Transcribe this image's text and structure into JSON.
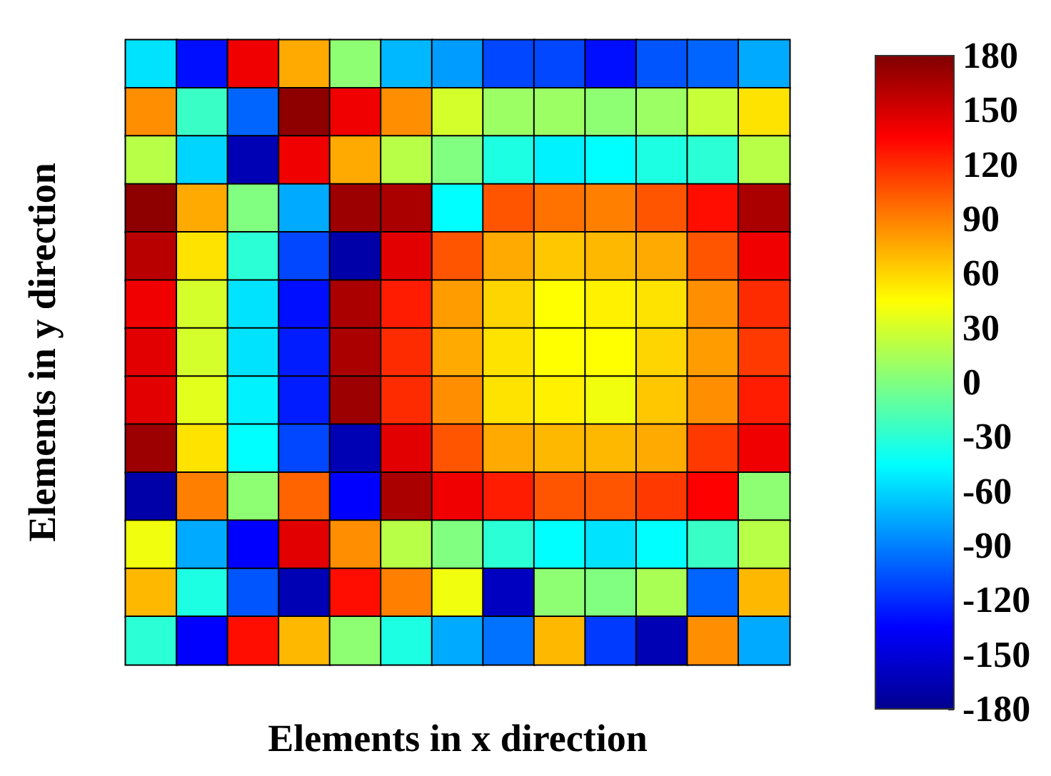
{
  "chart_data": {
    "type": "heatmap",
    "xlabel": "Elements in x direction",
    "ylabel": "Elements in y direction",
    "categories": [
      null,
      null,
      null,
      null,
      null,
      null,
      null,
      null,
      null,
      null,
      null,
      null,
      null
    ],
    "y_categories": [
      null,
      null,
      null,
      null,
      null,
      null,
      null,
      null,
      null,
      null,
      null,
      null,
      null
    ],
    "clim": [
      -180,
      180
    ],
    "cticks": [
      -180,
      -150,
      -120,
      -90,
      -60,
      -30,
      0,
      30,
      60,
      90,
      120,
      150,
      180
    ],
    "cells": [
      [
        -55,
        -130,
        140,
        75,
        5,
        -70,
        -80,
        -110,
        -110,
        -130,
        -105,
        -100,
        -75
      ],
      [
        85,
        -25,
        -100,
        175,
        140,
        85,
        30,
        10,
        10,
        5,
        10,
        25,
        55
      ],
      [
        20,
        -60,
        -165,
        140,
        75,
        20,
        0,
        -35,
        -50,
        -45,
        -35,
        -30,
        20
      ],
      [
        175,
        75,
        0,
        -75,
        170,
        165,
        -45,
        105,
        95,
        90,
        105,
        130,
        165
      ],
      [
        160,
        55,
        -30,
        -110,
        -170,
        145,
        105,
        75,
        65,
        70,
        75,
        105,
        140
      ],
      [
        140,
        30,
        -55,
        -130,
        165,
        125,
        80,
        60,
        45,
        50,
        55,
        85,
        120
      ],
      [
        145,
        30,
        -55,
        -125,
        165,
        120,
        75,
        55,
        45,
        45,
        60,
        80,
        115
      ],
      [
        145,
        35,
        -50,
        -125,
        170,
        120,
        85,
        55,
        50,
        40,
        65,
        85,
        125
      ],
      [
        170,
        55,
        -45,
        -110,
        -165,
        145,
        105,
        75,
        70,
        70,
        75,
        115,
        140
      ],
      [
        -170,
        90,
        5,
        100,
        -135,
        165,
        140,
        125,
        105,
        105,
        115,
        135,
        5
      ],
      [
        40,
        -75,
        -135,
        145,
        85,
        20,
        0,
        -30,
        -45,
        -55,
        -45,
        -25,
        20
      ],
      [
        70,
        -35,
        -105,
        -165,
        130,
        90,
        40,
        -160,
        5,
        0,
        15,
        -100,
        70
      ],
      [
        -30,
        -135,
        130,
        70,
        5,
        -35,
        -75,
        -95,
        70,
        -115,
        -165,
        85,
        -75
      ]
    ]
  }
}
